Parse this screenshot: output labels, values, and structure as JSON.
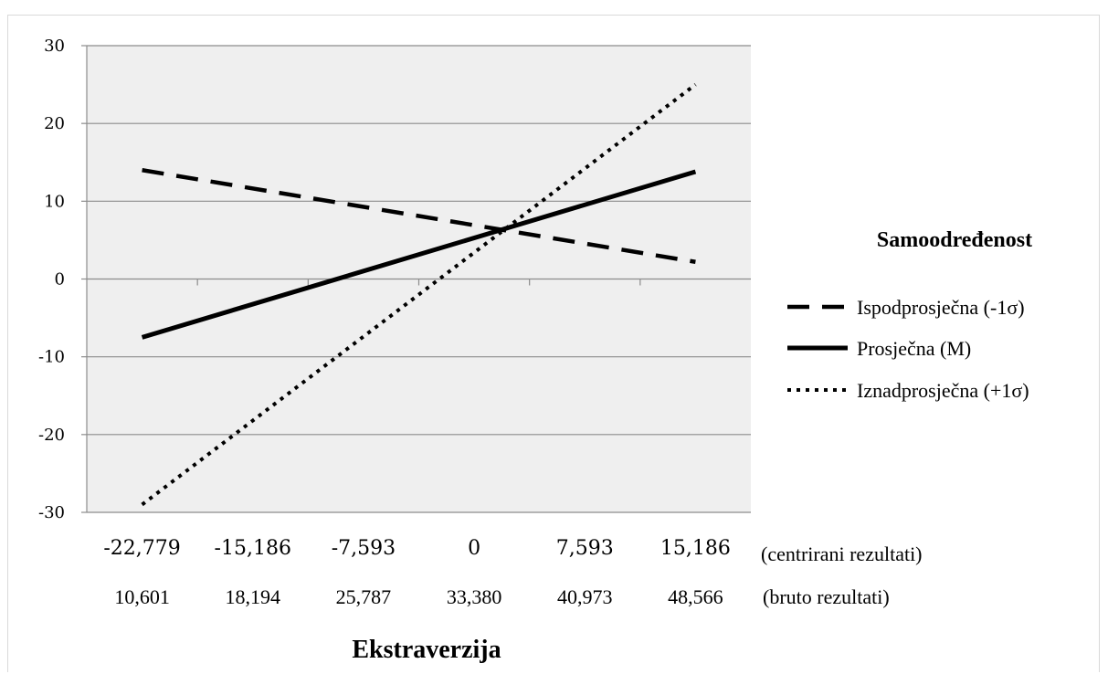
{
  "chart_data": {
    "type": "line",
    "xlabel": "Ekstraverzija",
    "categories": [
      "-22,779",
      "-15,186",
      "-7,593",
      "0",
      "7,593",
      "15,186"
    ],
    "categories_raw": [
      "10,601",
      "18,194",
      "25,787",
      "33,380",
      "40,973",
      "48,566"
    ],
    "x_values": [
      -22.779,
      15.186
    ],
    "x_note_centered": "(centrirani rezultati)",
    "x_note_raw": "(bruto rezultati)",
    "ylim": [
      -30,
      30
    ],
    "yticks": [
      "30",
      "20",
      "10",
      "0",
      "-10",
      "-20",
      "-30"
    ],
    "grid": true,
    "legend_title": "Samoodređenost",
    "legend_position": "right",
    "series": [
      {
        "name": "Ispodprosječna (-1σ)",
        "style": "dashed",
        "values": [
          14,
          2.2
        ]
      },
      {
        "name": "Prosječna (M)",
        "style": "solid",
        "values": [
          -7.5,
          13.8
        ]
      },
      {
        "name": "Iznadprosječna (+1σ)",
        "style": "dotted",
        "values": [
          -29,
          25
        ]
      }
    ],
    "colors": {
      "plot_bg": "#efefef",
      "grid": "#8c8c8c",
      "line": "#000000"
    }
  }
}
